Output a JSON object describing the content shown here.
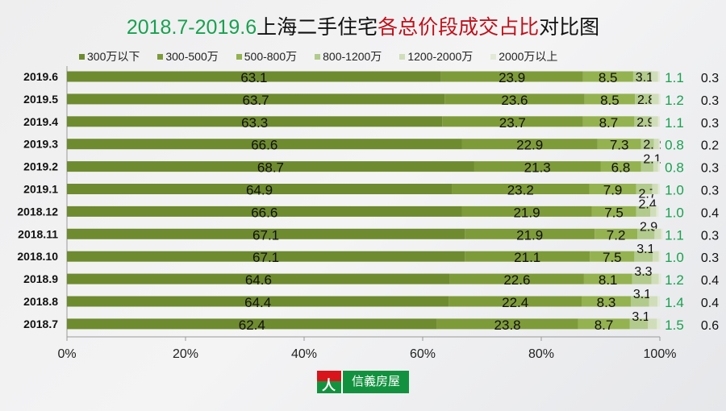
{
  "title": {
    "green": "2018.7-2019.6",
    "black1": "上海二手住宅",
    "red": "各总价段成交占比",
    "black2": "对比图"
  },
  "logo": {
    "mark": "人",
    "text": "信義房屋"
  },
  "colors": [
    "#6e8b2f",
    "#7e9b39",
    "#94b24f",
    "#b2ca8b",
    "#d0ddb9",
    "#e2e9d6"
  ],
  "chart_data": {
    "type": "bar",
    "orientation": "horizontal",
    "stacked": true,
    "title": "2018.7-2019.6上海二手住宅各总价段成交占比对比图",
    "legend_position": "top",
    "categories": [
      "2019.6",
      "2019.5",
      "2019.4",
      "2019.3",
      "2019.2",
      "2019.1",
      "2018.12",
      "2018.11",
      "2018.10",
      "2018.9",
      "2018.8",
      "2018.7"
    ],
    "series": [
      {
        "name": "300万以下",
        "values": [
          63.1,
          63.7,
          63.3,
          66.6,
          68.7,
          64.9,
          66.6,
          67.1,
          67.1,
          64.6,
          64.4,
          62.4
        ]
      },
      {
        "name": "300-500万",
        "values": [
          23.9,
          23.6,
          23.7,
          22.9,
          21.3,
          23.2,
          21.9,
          21.9,
          21.1,
          22.6,
          22.4,
          23.8
        ]
      },
      {
        "name": "500-800万",
        "values": [
          8.5,
          8.5,
          8.7,
          7.3,
          6.8,
          7.9,
          7.5,
          7.2,
          7.5,
          8.1,
          8.3,
          8.7
        ]
      },
      {
        "name": "800-1200万",
        "values": [
          3.1,
          2.8,
          2.9,
          2.2,
          2.1,
          2.7,
          2.4,
          2.9,
          3.1,
          3.3,
          3.1,
          3.1
        ]
      },
      {
        "name": "1200-2000万",
        "values": [
          1.1,
          1.2,
          1.1,
          0.8,
          0.8,
          1.0,
          1.0,
          1.1,
          1.0,
          1.2,
          1.4,
          1.5
        ]
      },
      {
        "name": "2000万以上",
        "values": [
          0.3,
          0.3,
          0.3,
          0.2,
          0.3,
          0.3,
          0.4,
          0.3,
          0.3,
          0.4,
          0.4,
          0.6
        ]
      }
    ],
    "xlim": [
      0,
      100
    ],
    "xticks": [
      "0%",
      "20%",
      "40%",
      "60%",
      "80%",
      "100%"
    ],
    "grid": false
  }
}
